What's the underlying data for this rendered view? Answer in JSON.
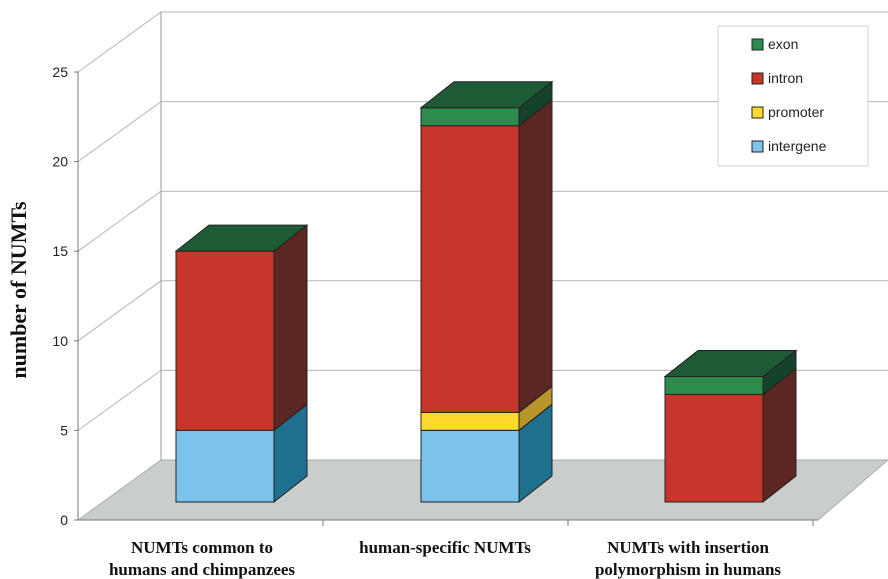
{
  "chart_data": {
    "type": "bar",
    "stacked": true,
    "three_d": true,
    "ylabel": "number of NUMTs",
    "ylim": [
      0,
      25
    ],
    "yticks": [
      "0",
      "5",
      "10",
      "15",
      "20",
      "25"
    ],
    "grid": true,
    "legend_position": "top-right",
    "categories": [
      [
        "NUMTs common to",
        "humans and chimpanzees"
      ],
      [
        "human-specific NUMTs"
      ],
      [
        "NUMTs with insertion",
        "polymorphism in humans"
      ]
    ],
    "series": [
      {
        "name": "intergene",
        "values": [
          4,
          4,
          0
        ],
        "color": "#7cc3ec",
        "side": "#1f6f8f"
      },
      {
        "name": "promoter",
        "values": [
          0,
          1,
          0
        ],
        "color": "#ffd92e",
        "side": "#b8962a"
      },
      {
        "name": "intron",
        "values": [
          10,
          16,
          6
        ],
        "color": "#c8352b",
        "side": "#5c2622"
      },
      {
        "name": "exon",
        "values": [
          0,
          1,
          1
        ],
        "color": "#2e8b4e",
        "side": "#15422a"
      }
    ],
    "legend_order": [
      "exon",
      "intron",
      "promoter",
      "intergene"
    ]
  }
}
